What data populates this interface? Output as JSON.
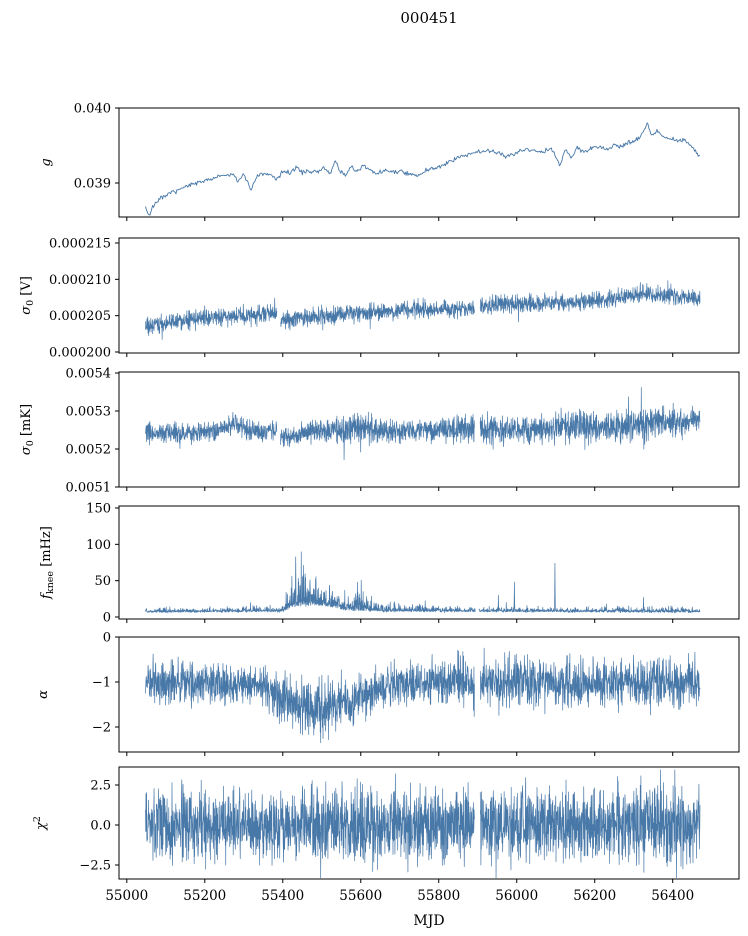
{
  "title": "000451",
  "accent_color": "#4878a8",
  "axis_color": "#000000",
  "chart_data": {
    "type": "line",
    "title": "000451",
    "legend": "none",
    "grid": false,
    "x_axis": {
      "label": "MJD",
      "xlim": [
        54980,
        56570
      ],
      "xticks": [
        55000,
        55200,
        55400,
        55600,
        55800,
        56000,
        56200,
        56400
      ],
      "xtick_labels": [
        "55000",
        "55200",
        "55400",
        "55600",
        "55800",
        "56000",
        "56200",
        "56400"
      ],
      "data_range": [
        55048,
        56470
      ]
    },
    "panels": [
      {
        "name": "g",
        "style": "line",
        "seed": 7,
        "n_points": 620,
        "ylim": [
          0.0385467,
          0.04
        ],
        "yticks": [
          0.039,
          0.04
        ],
        "ytick_labels": [
          "0.039",
          "0.040"
        ],
        "ylabel": {
          "var": "g",
          "sub": "",
          "sup": "",
          "unit": ""
        },
        "noise_amp": 2e-05,
        "clamp": [
          0.038555,
          0.03995
        ],
        "gaps": [],
        "trend": [
          [
            55048,
            0.03868
          ],
          [
            55058,
            0.03856
          ],
          [
            55070,
            0.03872
          ],
          [
            55090,
            0.0388
          ],
          [
            55120,
            0.03888
          ],
          [
            55160,
            0.03896
          ],
          [
            55200,
            0.03904
          ],
          [
            55240,
            0.03909
          ],
          [
            55270,
            0.03912
          ],
          [
            55285,
            0.03902
          ],
          [
            55300,
            0.03912
          ],
          [
            55320,
            0.0389
          ],
          [
            55335,
            0.0391
          ],
          [
            55365,
            0.03912
          ],
          [
            55385,
            0.03905
          ],
          [
            55400,
            0.03916
          ],
          [
            55420,
            0.03913
          ],
          [
            55435,
            0.03922
          ],
          [
            55450,
            0.03914
          ],
          [
            55470,
            0.03917
          ],
          [
            55490,
            0.03913
          ],
          [
            55505,
            0.03921
          ],
          [
            55520,
            0.03912
          ],
          [
            55535,
            0.03928
          ],
          [
            55545,
            0.03916
          ],
          [
            55560,
            0.0391
          ],
          [
            55575,
            0.03922
          ],
          [
            55590,
            0.03915
          ],
          [
            55605,
            0.03923
          ],
          [
            55620,
            0.03918
          ],
          [
            55640,
            0.03912
          ],
          [
            55660,
            0.03917
          ],
          [
            55680,
            0.03914
          ],
          [
            55700,
            0.03917
          ],
          [
            55720,
            0.03913
          ],
          [
            55745,
            0.0391
          ],
          [
            55770,
            0.03917
          ],
          [
            55790,
            0.0392
          ],
          [
            55810,
            0.03923
          ],
          [
            55830,
            0.0393
          ],
          [
            55860,
            0.03936
          ],
          [
            55890,
            0.0394
          ],
          [
            55920,
            0.03943
          ],
          [
            55950,
            0.03941
          ],
          [
            55970,
            0.03936
          ],
          [
            55990,
            0.03939
          ],
          [
            56010,
            0.03942
          ],
          [
            56030,
            0.03945
          ],
          [
            56050,
            0.03943
          ],
          [
            56070,
            0.03942
          ],
          [
            56090,
            0.03946
          ],
          [
            56110,
            0.03924
          ],
          [
            56125,
            0.03946
          ],
          [
            56140,
            0.03932
          ],
          [
            56155,
            0.03948
          ],
          [
            56170,
            0.0394
          ],
          [
            56190,
            0.03946
          ],
          [
            56210,
            0.03948
          ],
          [
            56230,
            0.03945
          ],
          [
            56250,
            0.0395
          ],
          [
            56270,
            0.03948
          ],
          [
            56290,
            0.03954
          ],
          [
            56310,
            0.03958
          ],
          [
            56325,
            0.03968
          ],
          [
            56335,
            0.03982
          ],
          [
            56345,
            0.03964
          ],
          [
            56360,
            0.0397
          ],
          [
            56375,
            0.03962
          ],
          [
            56390,
            0.0396
          ],
          [
            56410,
            0.03956
          ],
          [
            56430,
            0.03958
          ],
          [
            56450,
            0.03948
          ],
          [
            56465,
            0.03938
          ]
        ]
      },
      {
        "name": "sigma0_V",
        "style": "band",
        "seed": 21,
        "n_points": 2400,
        "ylim": [
          0.00019986,
          0.00021569
        ],
        "yticks": [
          0.0002,
          0.000205,
          0.00021,
          0.000215
        ],
        "ytick_labels": [
          "0.000200",
          "0.000205",
          "0.000210",
          "0.000215"
        ],
        "ylabel": {
          "var": "σ",
          "sub": "0",
          "sup": "",
          "unit": " [V]"
        },
        "noise_amp": 8e-07,
        "gaps": [
          [
            55385,
            55394
          ],
          [
            55892,
            55906
          ]
        ],
        "trend": [
          [
            55048,
            0.0002035
          ],
          [
            55100,
            0.000204
          ],
          [
            55160,
            0.0002044
          ],
          [
            55220,
            0.0002047
          ],
          [
            55280,
            0.000205
          ],
          [
            55340,
            0.0002052
          ],
          [
            55386,
            0.0002054
          ],
          [
            55394,
            0.0002043
          ],
          [
            55430,
            0.0002046
          ],
          [
            55470,
            0.0002048
          ],
          [
            55520,
            0.0002051
          ],
          [
            55570,
            0.0002053
          ],
          [
            55620,
            0.0002055
          ],
          [
            55680,
            0.0002058
          ],
          [
            55730,
            0.000206
          ],
          [
            55780,
            0.0002058
          ],
          [
            55840,
            0.0002059
          ],
          [
            55892,
            0.000206
          ],
          [
            55906,
            0.0002063
          ],
          [
            55960,
            0.0002065
          ],
          [
            56020,
            0.0002066
          ],
          [
            56080,
            0.0002067
          ],
          [
            56140,
            0.0002068
          ],
          [
            56200,
            0.000207
          ],
          [
            56260,
            0.0002075
          ],
          [
            56310,
            0.0002079
          ],
          [
            56350,
            0.0002081
          ],
          [
            56390,
            0.0002077
          ],
          [
            56430,
            0.0002076
          ],
          [
            56468,
            0.0002074
          ]
        ]
      },
      {
        "name": "sigma0_mK",
        "style": "band",
        "seed": 33,
        "n_points": 2400,
        "ylim": [
          0.0051,
          0.0054026
        ],
        "yticks": [
          0.0051,
          0.0052,
          0.0053,
          0.0054
        ],
        "ytick_labels": [
          "0.0051",
          "0.0052",
          "0.0053",
          "0.0054"
        ],
        "ylabel": {
          "var": "σ",
          "sub": "0",
          "sup": "",
          "unit": " [mK]"
        },
        "noise_amp": [
          [
            55048,
            1.6e-05
          ],
          [
            55250,
            1.8e-05
          ],
          [
            55400,
            1.6e-05
          ],
          [
            55550,
            2.2e-05
          ],
          [
            55600,
            2.6e-05
          ],
          [
            55700,
            1.8e-05
          ],
          [
            55850,
            2.4e-05
          ],
          [
            55950,
            2.6e-05
          ],
          [
            56050,
            2.2e-05
          ],
          [
            56150,
            2.8e-05
          ],
          [
            56250,
            2.2e-05
          ],
          [
            56320,
            2.8e-05
          ],
          [
            56400,
            2.2e-05
          ],
          [
            56468,
            2e-05
          ]
        ],
        "gaps": [
          [
            55385,
            55394
          ],
          [
            55892,
            55906
          ]
        ],
        "trend": [
          [
            55048,
            0.005243
          ],
          [
            55110,
            0.00524
          ],
          [
            55170,
            0.005243
          ],
          [
            55230,
            0.005248
          ],
          [
            55258,
            0.005262
          ],
          [
            55275,
            0.005272
          ],
          [
            55292,
            0.00526
          ],
          [
            55320,
            0.005248
          ],
          [
            55355,
            0.005245
          ],
          [
            55386,
            0.00525
          ],
          [
            55394,
            0.005228
          ],
          [
            55420,
            0.005236
          ],
          [
            55460,
            0.005243
          ],
          [
            55510,
            0.005246
          ],
          [
            55560,
            0.00525
          ],
          [
            55600,
            0.005258
          ],
          [
            55630,
            0.005252
          ],
          [
            55680,
            0.005246
          ],
          [
            55730,
            0.005247
          ],
          [
            55780,
            0.00525
          ],
          [
            55830,
            0.005252
          ],
          [
            55880,
            0.005252
          ],
          [
            55930,
            0.00525
          ],
          [
            55980,
            0.005248
          ],
          [
            56030,
            0.00525
          ],
          [
            56080,
            0.005253
          ],
          [
            56130,
            0.005258
          ],
          [
            56160,
            0.005264
          ],
          [
            56200,
            0.005256
          ],
          [
            56250,
            0.005258
          ],
          [
            56300,
            0.005266
          ],
          [
            56350,
            0.00527
          ],
          [
            56400,
            0.005272
          ],
          [
            56440,
            0.005274
          ],
          [
            56468,
            0.005276
          ]
        ]
      },
      {
        "name": "f_knee",
        "style": "spiky",
        "seed": 45,
        "n_points": 2600,
        "ylim": [
          -2.75,
          152.75
        ],
        "yticks": [
          0,
          50,
          100,
          150
        ],
        "ytick_labels": [
          "0",
          "50",
          "100",
          "150"
        ],
        "ylabel": {
          "var": "f",
          "sub": "knee",
          "sup": "",
          "unit": " [mHz]"
        },
        "noise_amp": [
          [
            55048,
            7
          ],
          [
            55280,
            7
          ],
          [
            55300,
            16
          ],
          [
            55320,
            12
          ],
          [
            55345,
            8
          ],
          [
            55395,
            10
          ],
          [
            55415,
            45
          ],
          [
            55435,
            75
          ],
          [
            55455,
            85
          ],
          [
            55475,
            70
          ],
          [
            55495,
            55
          ],
          [
            55515,
            42
          ],
          [
            55535,
            40
          ],
          [
            55555,
            30
          ],
          [
            55575,
            30
          ],
          [
            55592,
            42
          ],
          [
            55605,
            38
          ],
          [
            55620,
            28
          ],
          [
            55645,
            20
          ],
          [
            55680,
            16
          ],
          [
            55710,
            14
          ],
          [
            55740,
            13
          ],
          [
            55770,
            15
          ],
          [
            55800,
            14
          ],
          [
            55830,
            11
          ],
          [
            55860,
            9
          ],
          [
            55900,
            8
          ],
          [
            55940,
            9
          ],
          [
            55990,
            9
          ],
          [
            56040,
            8
          ],
          [
            56100,
            8
          ],
          [
            56160,
            8
          ],
          [
            56220,
            9
          ],
          [
            56260,
            11
          ],
          [
            56300,
            10
          ],
          [
            56350,
            8
          ],
          [
            56400,
            9
          ],
          [
            56440,
            8
          ],
          [
            56468,
            7
          ]
        ],
        "spikes": [
          [
            55953,
            30
          ],
          [
            55973,
            20
          ],
          [
            55994,
            48
          ],
          [
            56098,
            74
          ],
          [
            56230,
            18
          ],
          [
            56325,
            27
          ]
        ],
        "gaps": [
          [
            55894,
            55903
          ]
        ],
        "clamp": [
          1.5,
          148
        ],
        "trend": [
          [
            55048,
            7
          ],
          [
            55400,
            8
          ],
          [
            55430,
            15
          ],
          [
            55480,
            17
          ],
          [
            55530,
            14
          ],
          [
            55560,
            10
          ],
          [
            55650,
            8
          ],
          [
            56468,
            7
          ]
        ]
      },
      {
        "name": "alpha",
        "style": "band",
        "seed": 57,
        "n_points": 2400,
        "ylim": [
          -2.5556,
          0
        ],
        "yticks": [
          -2,
          -1,
          0
        ],
        "ytick_labels": [
          "−2",
          "−1",
          "0"
        ],
        "ylabel": {
          "var": "α",
          "sub": "",
          "sup": "",
          "unit": ""
        },
        "noise_amp": [
          [
            55048,
            0.33
          ],
          [
            55280,
            0.3
          ],
          [
            55320,
            0.22
          ],
          [
            55360,
            0.28
          ],
          [
            55420,
            0.38
          ],
          [
            55500,
            0.42
          ],
          [
            55560,
            0.38
          ],
          [
            55620,
            0.34
          ],
          [
            55700,
            0.3
          ],
          [
            55800,
            0.33
          ],
          [
            55900,
            0.36
          ],
          [
            56100,
            0.36
          ],
          [
            56300,
            0.36
          ],
          [
            56468,
            0.34
          ]
        ],
        "clamp": [
          -2.35,
          -0.1
        ],
        "gaps": [
          [
            55892,
            55906
          ]
        ],
        "trend": [
          [
            55048,
            -1.0
          ],
          [
            55150,
            -1.0
          ],
          [
            55250,
            -1.02
          ],
          [
            55300,
            -1.05
          ],
          [
            55340,
            -1.08
          ],
          [
            55380,
            -1.25
          ],
          [
            55420,
            -1.45
          ],
          [
            55460,
            -1.55
          ],
          [
            55500,
            -1.6
          ],
          [
            55540,
            -1.55
          ],
          [
            55580,
            -1.45
          ],
          [
            55620,
            -1.3
          ],
          [
            55660,
            -1.15
          ],
          [
            55700,
            -1.07
          ],
          [
            55750,
            -1.02
          ],
          [
            55850,
            -1.0
          ],
          [
            56468,
            -1.0
          ]
        ]
      },
      {
        "name": "chi2",
        "style": "band",
        "seed": 69,
        "n_points": 2600,
        "ylim": [
          -3.375,
          3.625
        ],
        "yticks": [
          -2.5,
          0.0,
          2.5
        ],
        "ytick_labels": [
          "−2.5",
          "0.0",
          "2.5"
        ],
        "ylabel": {
          "var": "χ",
          "sub": "",
          "sup": "2",
          "unit": ""
        },
        "noise_amp": 1.5,
        "clamp": [
          -3.3,
          3.45
        ],
        "gaps": [
          [
            55892,
            55906
          ]
        ],
        "trend": [
          [
            55048,
            0
          ],
          [
            56468,
            0
          ]
        ]
      }
    ]
  }
}
